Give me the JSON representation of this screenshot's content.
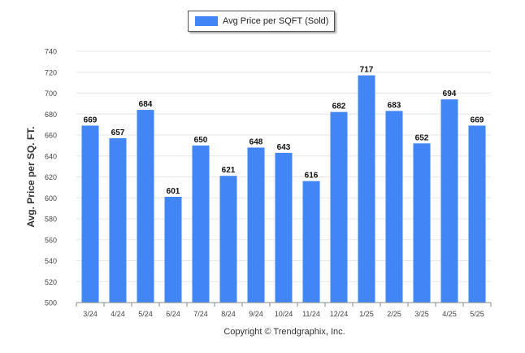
{
  "chart_data": {
    "type": "bar",
    "categories": [
      "3/24",
      "4/24",
      "5/24",
      "6/24",
      "7/24",
      "8/24",
      "9/24",
      "10/24",
      "11/24",
      "12/24",
      "1/25",
      "2/25",
      "3/25",
      "4/25",
      "5/25"
    ],
    "series": [
      {
        "name": "Avg Price per SQFT (Sold)",
        "values": [
          669,
          657,
          684,
          601,
          650,
          621,
          648,
          643,
          616,
          682,
          717,
          683,
          652,
          694,
          669
        ]
      }
    ],
    "ylabel": "Avg. Price per SQ. FT.",
    "xlabel": "",
    "ylim": [
      500,
      740
    ],
    "yticks": [
      500,
      520,
      540,
      560,
      580,
      600,
      620,
      640,
      660,
      680,
      700,
      720,
      740
    ],
    "grid": true,
    "legend_position": "top-center",
    "data_labels": true
  },
  "colors": {
    "bar": "#4285f4",
    "grid": "#e6e6e6",
    "axis": "#888888"
  },
  "footer": {
    "copyright": "Copyright © Trendgraphix, Inc."
  }
}
